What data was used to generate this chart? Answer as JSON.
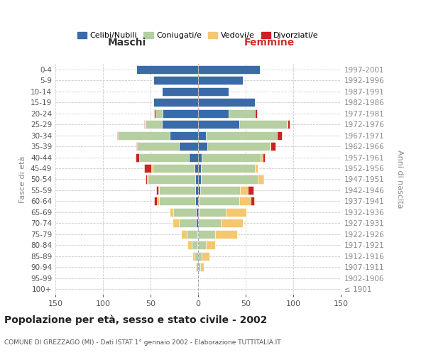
{
  "age_groups": [
    "100+",
    "95-99",
    "90-94",
    "85-89",
    "80-84",
    "75-79",
    "70-74",
    "65-69",
    "60-64",
    "55-59",
    "50-54",
    "45-49",
    "40-44",
    "35-39",
    "30-34",
    "25-29",
    "20-24",
    "15-19",
    "10-14",
    "5-9",
    "0-4"
  ],
  "birth_years": [
    "≤ 1901",
    "1902-1906",
    "1907-1911",
    "1912-1916",
    "1917-1921",
    "1922-1926",
    "1927-1931",
    "1932-1936",
    "1937-1941",
    "1942-1946",
    "1947-1951",
    "1952-1956",
    "1957-1961",
    "1962-1966",
    "1967-1971",
    "1972-1976",
    "1977-1981",
    "1982-1986",
    "1987-1991",
    "1992-1996",
    "1997-2001"
  ],
  "male": {
    "celibi": [
      0,
      1,
      0,
      0,
      1,
      1,
      2,
      2,
      3,
      3,
      3,
      4,
      10,
      20,
      30,
      38,
      37,
      47,
      38,
      47,
      65
    ],
    "coniugati": [
      0,
      0,
      2,
      4,
      6,
      11,
      18,
      24,
      38,
      38,
      50,
      44,
      52,
      44,
      54,
      17,
      8,
      0,
      0,
      0,
      0
    ],
    "vedovi": [
      0,
      0,
      1,
      2,
      4,
      6,
      7,
      4,
      2,
      1,
      1,
      1,
      0,
      0,
      0,
      1,
      0,
      0,
      0,
      0,
      0
    ],
    "divorziati": [
      0,
      0,
      0,
      0,
      0,
      0,
      0,
      0,
      3,
      2,
      1,
      8,
      4,
      1,
      1,
      1,
      1,
      0,
      0,
      0,
      0
    ]
  },
  "female": {
    "nubili": [
      0,
      0,
      0,
      0,
      0,
      0,
      0,
      1,
      1,
      2,
      3,
      3,
      4,
      10,
      8,
      43,
      32,
      60,
      32,
      47,
      65
    ],
    "coniugate": [
      0,
      0,
      2,
      4,
      8,
      18,
      24,
      28,
      42,
      42,
      60,
      57,
      62,
      65,
      75,
      50,
      28,
      0,
      0,
      0,
      0
    ],
    "vedove": [
      0,
      1,
      4,
      8,
      10,
      23,
      23,
      22,
      12,
      8,
      5,
      3,
      2,
      1,
      0,
      1,
      0,
      0,
      0,
      0,
      0
    ],
    "divorziate": [
      0,
      0,
      0,
      0,
      0,
      0,
      0,
      0,
      4,
      6,
      1,
      0,
      2,
      5,
      5,
      2,
      2,
      0,
      0,
      0,
      0
    ]
  },
  "colors": {
    "celibi_nubili": "#3a6aa8",
    "coniugati_e": "#b5cfa0",
    "vedovi_e": "#f5c76e",
    "divorziati_e": "#cc2222"
  },
  "xlim": 150,
  "title": "Popolazione per età, sesso e stato civile - 2002",
  "subtitle": "COMUNE DI GREZZAGO (MI) - Dati ISTAT 1° gennaio 2002 - Elaborazione TUTTITALIA.IT",
  "ylabel_left": "Fasce di età",
  "ylabel_right": "Anni di nascita",
  "xlabel_left": "Maschi",
  "xlabel_right": "Femmine",
  "legend_labels": [
    "Celibi/Nubili",
    "Coniugati/e",
    "Vedovi/e",
    "Divorziati/e"
  ]
}
